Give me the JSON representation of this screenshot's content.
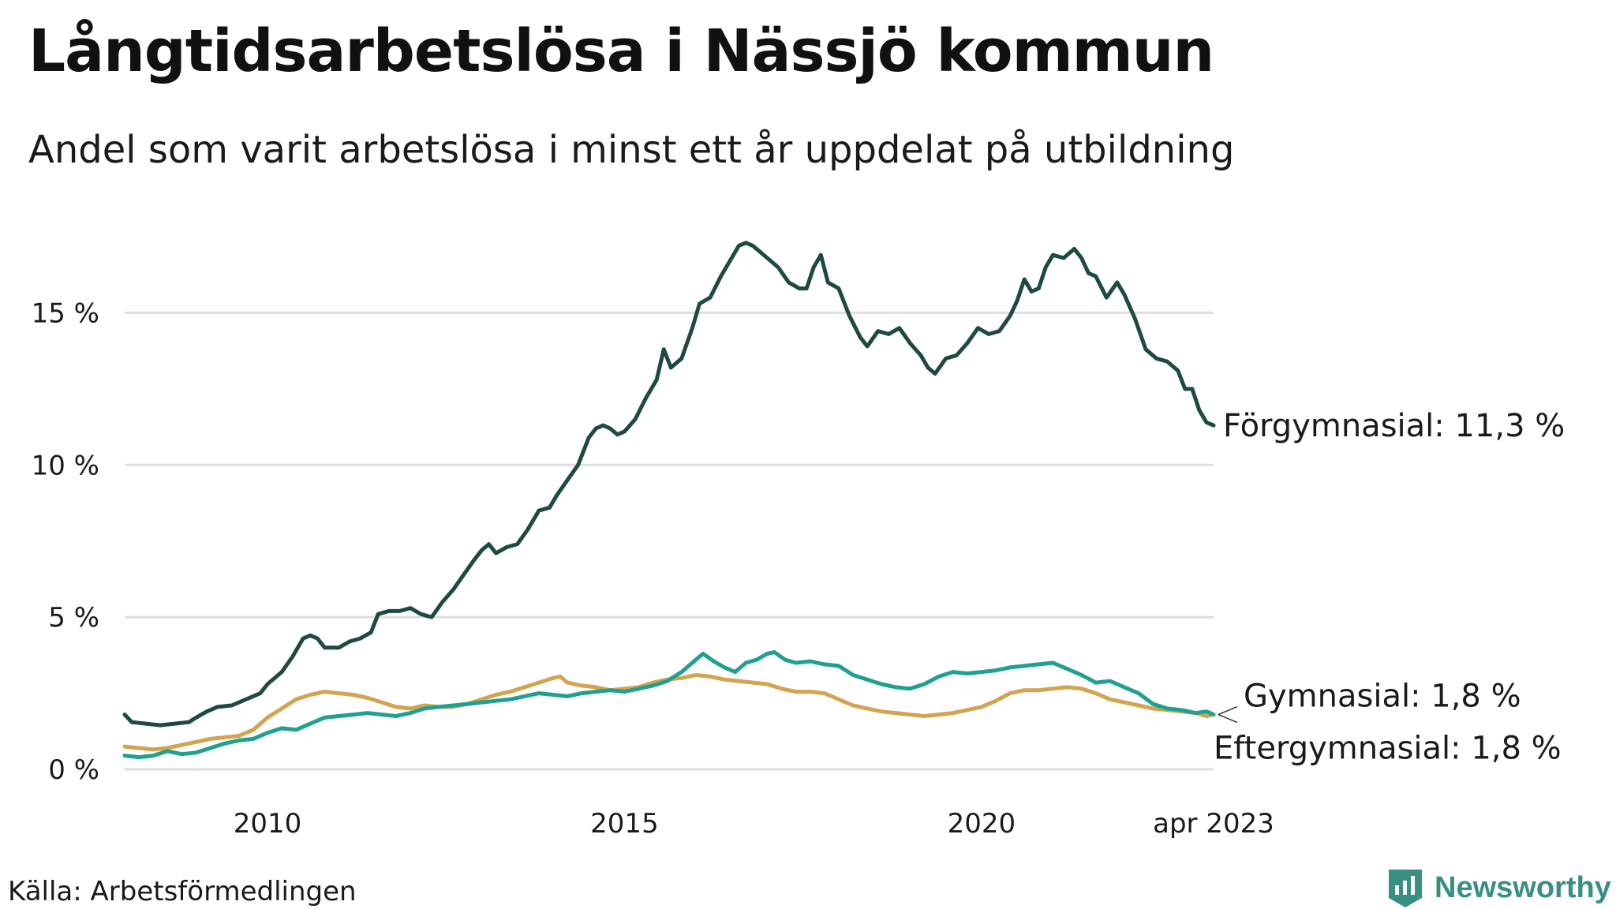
{
  "title": "Långtidsarbetslösa i Nässjö kommun",
  "subtitle": "Andel som varit arbetslösa i minst ett år uppdelat på utbildning",
  "source": "Källa: Arbetsförmedlingen",
  "brand": {
    "name": "Newsworthy",
    "icon": "newsworthy-logo-icon",
    "color": "#3a8f83"
  },
  "chart_data": {
    "type": "line",
    "title": "Långtidsarbetslösa i Nässjö kommun",
    "subtitle": "Andel som varit arbetslösa i minst ett år uppdelat på utbildning",
    "xlabel": "",
    "ylabel": "",
    "xlim": [
      2008.0,
      2023.25
    ],
    "ylim": [
      0,
      17.5
    ],
    "grid": true,
    "legend": "direct labels at line ends (right)",
    "x_ticks": [
      {
        "value": 2010,
        "label": "2010"
      },
      {
        "value": 2015,
        "label": "2015"
      },
      {
        "value": 2020,
        "label": "2020"
      },
      {
        "value": 2023.25,
        "label": "apr 2023"
      }
    ],
    "y_ticks": [
      {
        "value": 0,
        "label": "0 %"
      },
      {
        "value": 5,
        "label": "5 %"
      },
      {
        "value": 10,
        "label": "10 %"
      },
      {
        "value": 15,
        "label": "15 %"
      }
    ],
    "series": [
      {
        "name": "Förgymnasial",
        "end_label": "Förgymnasial: 11,3 %",
        "color": "#1f4a43",
        "points": [
          [
            2008.0,
            1.8
          ],
          [
            2008.1,
            1.55
          ],
          [
            2008.3,
            1.5
          ],
          [
            2008.5,
            1.45
          ],
          [
            2008.7,
            1.5
          ],
          [
            2008.9,
            1.55
          ],
          [
            2009.0,
            1.7
          ],
          [
            2009.15,
            1.9
          ],
          [
            2009.3,
            2.05
          ],
          [
            2009.5,
            2.1
          ],
          [
            2009.7,
            2.3
          ],
          [
            2009.9,
            2.5
          ],
          [
            2010.0,
            2.8
          ],
          [
            2010.2,
            3.2
          ],
          [
            2010.35,
            3.7
          ],
          [
            2010.5,
            4.3
          ],
          [
            2010.6,
            4.4
          ],
          [
            2010.7,
            4.3
          ],
          [
            2010.8,
            4.0
          ],
          [
            2011.0,
            4.0
          ],
          [
            2011.15,
            4.2
          ],
          [
            2011.3,
            4.3
          ],
          [
            2011.45,
            4.5
          ],
          [
            2011.55,
            5.1
          ],
          [
            2011.7,
            5.2
          ],
          [
            2011.85,
            5.2
          ],
          [
            2012.0,
            5.3
          ],
          [
            2012.15,
            5.1
          ],
          [
            2012.3,
            5.0
          ],
          [
            2012.45,
            5.5
          ],
          [
            2012.6,
            5.9
          ],
          [
            2012.75,
            6.4
          ],
          [
            2012.9,
            6.9
          ],
          [
            2013.0,
            7.2
          ],
          [
            2013.1,
            7.4
          ],
          [
            2013.2,
            7.1
          ],
          [
            2013.35,
            7.3
          ],
          [
            2013.5,
            7.4
          ],
          [
            2013.65,
            7.9
          ],
          [
            2013.8,
            8.5
          ],
          [
            2013.95,
            8.6
          ],
          [
            2014.05,
            9.0
          ],
          [
            2014.2,
            9.5
          ],
          [
            2014.35,
            10.0
          ],
          [
            2014.5,
            10.9
          ],
          [
            2014.6,
            11.2
          ],
          [
            2014.7,
            11.3
          ],
          [
            2014.8,
            11.2
          ],
          [
            2014.9,
            11.0
          ],
          [
            2015.0,
            11.1
          ],
          [
            2015.15,
            11.5
          ],
          [
            2015.3,
            12.2
          ],
          [
            2015.45,
            12.8
          ],
          [
            2015.55,
            13.8
          ],
          [
            2015.65,
            13.2
          ],
          [
            2015.8,
            13.5
          ],
          [
            2015.95,
            14.5
          ],
          [
            2016.05,
            15.3
          ],
          [
            2016.2,
            15.5
          ],
          [
            2016.35,
            16.2
          ],
          [
            2016.5,
            16.8
          ],
          [
            2016.6,
            17.2
          ],
          [
            2016.7,
            17.3
          ],
          [
            2016.8,
            17.2
          ],
          [
            2016.9,
            17.0
          ],
          [
            2017.0,
            16.8
          ],
          [
            2017.15,
            16.5
          ],
          [
            2017.3,
            16.0
          ],
          [
            2017.45,
            15.8
          ],
          [
            2017.55,
            15.8
          ],
          [
            2017.65,
            16.5
          ],
          [
            2017.75,
            16.9
          ],
          [
            2017.85,
            16.0
          ],
          [
            2018.0,
            15.8
          ],
          [
            2018.15,
            14.9
          ],
          [
            2018.3,
            14.2
          ],
          [
            2018.4,
            13.9
          ],
          [
            2018.55,
            14.4
          ],
          [
            2018.7,
            14.3
          ],
          [
            2018.85,
            14.5
          ],
          [
            2019.0,
            14.0
          ],
          [
            2019.15,
            13.6
          ],
          [
            2019.25,
            13.2
          ],
          [
            2019.35,
            13.0
          ],
          [
            2019.5,
            13.5
          ],
          [
            2019.65,
            13.6
          ],
          [
            2019.8,
            14.0
          ],
          [
            2019.95,
            14.5
          ],
          [
            2020.1,
            14.3
          ],
          [
            2020.25,
            14.4
          ],
          [
            2020.4,
            14.9
          ],
          [
            2020.5,
            15.4
          ],
          [
            2020.6,
            16.1
          ],
          [
            2020.7,
            15.7
          ],
          [
            2020.8,
            15.8
          ],
          [
            2020.9,
            16.5
          ],
          [
            2021.0,
            16.9
          ],
          [
            2021.15,
            16.8
          ],
          [
            2021.3,
            17.1
          ],
          [
            2021.4,
            16.8
          ],
          [
            2021.5,
            16.3
          ],
          [
            2021.6,
            16.2
          ],
          [
            2021.75,
            15.5
          ],
          [
            2021.9,
            16.0
          ],
          [
            2022.0,
            15.6
          ],
          [
            2022.15,
            14.8
          ],
          [
            2022.3,
            13.8
          ],
          [
            2022.45,
            13.5
          ],
          [
            2022.6,
            13.4
          ],
          [
            2022.75,
            13.1
          ],
          [
            2022.85,
            12.5
          ],
          [
            2022.95,
            12.5
          ],
          [
            2023.05,
            11.8
          ],
          [
            2023.15,
            11.4
          ],
          [
            2023.25,
            11.3
          ]
        ]
      },
      {
        "name": "Gymnasial",
        "end_label": "Gymnasial:  1,8 %",
        "color": "#20a090",
        "points": [
          [
            2008.0,
            0.45
          ],
          [
            2008.2,
            0.4
          ],
          [
            2008.4,
            0.45
          ],
          [
            2008.6,
            0.6
          ],
          [
            2008.8,
            0.5
          ],
          [
            2009.0,
            0.55
          ],
          [
            2009.2,
            0.7
          ],
          [
            2009.4,
            0.85
          ],
          [
            2009.6,
            0.95
          ],
          [
            2009.8,
            1.0
          ],
          [
            2010.0,
            1.2
          ],
          [
            2010.2,
            1.35
          ],
          [
            2010.4,
            1.3
          ],
          [
            2010.6,
            1.5
          ],
          [
            2010.8,
            1.7
          ],
          [
            2011.0,
            1.75
          ],
          [
            2011.2,
            1.8
          ],
          [
            2011.4,
            1.85
          ],
          [
            2011.6,
            1.8
          ],
          [
            2011.8,
            1.75
          ],
          [
            2012.0,
            1.85
          ],
          [
            2012.2,
            2.0
          ],
          [
            2012.4,
            2.05
          ],
          [
            2012.6,
            2.1
          ],
          [
            2012.8,
            2.15
          ],
          [
            2013.0,
            2.2
          ],
          [
            2013.2,
            2.25
          ],
          [
            2013.4,
            2.3
          ],
          [
            2013.6,
            2.4
          ],
          [
            2013.8,
            2.5
          ],
          [
            2014.0,
            2.45
          ],
          [
            2014.2,
            2.4
          ],
          [
            2014.4,
            2.5
          ],
          [
            2014.6,
            2.55
          ],
          [
            2014.8,
            2.6
          ],
          [
            2015.0,
            2.55
          ],
          [
            2015.2,
            2.65
          ],
          [
            2015.4,
            2.75
          ],
          [
            2015.6,
            2.9
          ],
          [
            2015.8,
            3.2
          ],
          [
            2016.0,
            3.6
          ],
          [
            2016.1,
            3.8
          ],
          [
            2016.25,
            3.55
          ],
          [
            2016.4,
            3.35
          ],
          [
            2016.55,
            3.2
          ],
          [
            2016.7,
            3.5
          ],
          [
            2016.85,
            3.6
          ],
          [
            2017.0,
            3.8
          ],
          [
            2017.1,
            3.85
          ],
          [
            2017.25,
            3.6
          ],
          [
            2017.4,
            3.5
          ],
          [
            2017.6,
            3.55
          ],
          [
            2017.8,
            3.45
          ],
          [
            2018.0,
            3.4
          ],
          [
            2018.2,
            3.1
          ],
          [
            2018.4,
            2.95
          ],
          [
            2018.6,
            2.8
          ],
          [
            2018.8,
            2.7
          ],
          [
            2019.0,
            2.65
          ],
          [
            2019.2,
            2.8
          ],
          [
            2019.4,
            3.05
          ],
          [
            2019.6,
            3.2
          ],
          [
            2019.8,
            3.15
          ],
          [
            2020.0,
            3.2
          ],
          [
            2020.2,
            3.25
          ],
          [
            2020.4,
            3.35
          ],
          [
            2020.6,
            3.4
          ],
          [
            2020.8,
            3.45
          ],
          [
            2021.0,
            3.5
          ],
          [
            2021.2,
            3.3
          ],
          [
            2021.4,
            3.1
          ],
          [
            2021.6,
            2.85
          ],
          [
            2021.8,
            2.9
          ],
          [
            2022.0,
            2.7
          ],
          [
            2022.2,
            2.5
          ],
          [
            2022.4,
            2.15
          ],
          [
            2022.6,
            2.0
          ],
          [
            2022.8,
            1.95
          ],
          [
            2023.0,
            1.85
          ],
          [
            2023.15,
            1.9
          ],
          [
            2023.25,
            1.8
          ]
        ]
      },
      {
        "name": "Eftergymnasial",
        "end_label": "Eftergymnasial:  1,8 %",
        "color": "#d4a350",
        "points": [
          [
            2008.0,
            0.75
          ],
          [
            2008.2,
            0.7
          ],
          [
            2008.4,
            0.65
          ],
          [
            2008.6,
            0.7
          ],
          [
            2008.8,
            0.8
          ],
          [
            2009.0,
            0.9
          ],
          [
            2009.2,
            1.0
          ],
          [
            2009.4,
            1.05
          ],
          [
            2009.6,
            1.1
          ],
          [
            2009.8,
            1.3
          ],
          [
            2010.0,
            1.7
          ],
          [
            2010.2,
            2.0
          ],
          [
            2010.4,
            2.3
          ],
          [
            2010.6,
            2.45
          ],
          [
            2010.8,
            2.55
          ],
          [
            2011.0,
            2.5
          ],
          [
            2011.2,
            2.45
          ],
          [
            2011.4,
            2.35
          ],
          [
            2011.6,
            2.2
          ],
          [
            2011.8,
            2.05
          ],
          [
            2012.0,
            2.0
          ],
          [
            2012.2,
            2.1
          ],
          [
            2012.4,
            2.05
          ],
          [
            2012.6,
            2.05
          ],
          [
            2012.8,
            2.15
          ],
          [
            2013.0,
            2.3
          ],
          [
            2013.2,
            2.45
          ],
          [
            2013.4,
            2.55
          ],
          [
            2013.6,
            2.7
          ],
          [
            2013.8,
            2.85
          ],
          [
            2014.0,
            3.0
          ],
          [
            2014.1,
            3.05
          ],
          [
            2014.2,
            2.85
          ],
          [
            2014.4,
            2.75
          ],
          [
            2014.6,
            2.7
          ],
          [
            2014.8,
            2.6
          ],
          [
            2015.0,
            2.65
          ],
          [
            2015.2,
            2.7
          ],
          [
            2015.4,
            2.85
          ],
          [
            2015.6,
            2.95
          ],
          [
            2015.8,
            3.0
          ],
          [
            2016.0,
            3.1
          ],
          [
            2016.2,
            3.05
          ],
          [
            2016.4,
            2.95
          ],
          [
            2016.6,
            2.9
          ],
          [
            2016.8,
            2.85
          ],
          [
            2017.0,
            2.8
          ],
          [
            2017.2,
            2.65
          ],
          [
            2017.4,
            2.55
          ],
          [
            2017.6,
            2.55
          ],
          [
            2017.8,
            2.5
          ],
          [
            2018.0,
            2.3
          ],
          [
            2018.2,
            2.1
          ],
          [
            2018.4,
            2.0
          ],
          [
            2018.6,
            1.9
          ],
          [
            2018.8,
            1.85
          ],
          [
            2019.0,
            1.8
          ],
          [
            2019.2,
            1.75
          ],
          [
            2019.4,
            1.8
          ],
          [
            2019.6,
            1.85
          ],
          [
            2019.8,
            1.95
          ],
          [
            2020.0,
            2.05
          ],
          [
            2020.2,
            2.25
          ],
          [
            2020.4,
            2.5
          ],
          [
            2020.6,
            2.6
          ],
          [
            2020.8,
            2.6
          ],
          [
            2021.0,
            2.65
          ],
          [
            2021.2,
            2.7
          ],
          [
            2021.4,
            2.65
          ],
          [
            2021.6,
            2.5
          ],
          [
            2021.8,
            2.3
          ],
          [
            2022.0,
            2.2
          ],
          [
            2022.2,
            2.1
          ],
          [
            2022.4,
            2.0
          ],
          [
            2022.6,
            1.95
          ],
          [
            2022.8,
            1.9
          ],
          [
            2023.0,
            1.85
          ],
          [
            2023.15,
            1.75
          ],
          [
            2023.25,
            1.8
          ]
        ]
      }
    ]
  }
}
